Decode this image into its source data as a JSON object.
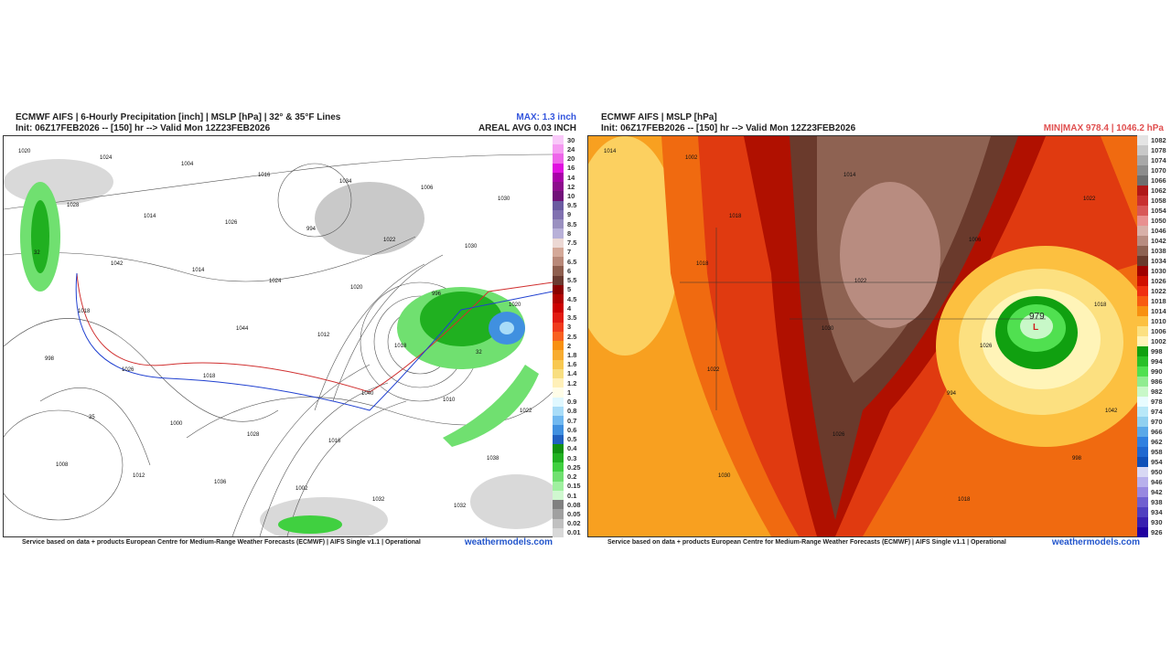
{
  "left": {
    "title_line1": "ECMWF AIFS | 6-Hourly Precipitation [inch] | MSLP [hPa] | 32° & 35°F Lines",
    "title_line2": "Init: 06Z17FEB2026 -- [150] hr --> Valid Mon 12Z23FEB2026",
    "max": "MAX: 1.3 inch",
    "areal": "AREAL AVG 0.03 INCH",
    "footer": "Service based on data + products European Centre for Medium-Range Weather Forecasts (ECMWF) | AIFS Single v1.1 | Operational",
    "watermark": "weathermodels.com",
    "map_labels": [
      "1020",
      "1014",
      "1024",
      "1018",
      "1022",
      "1012",
      "1016",
      "1022",
      "1020",
      "1026",
      "1028",
      "1032",
      "1030",
      "1042",
      "1044",
      "1040",
      "1038",
      "1024",
      "1026",
      "1020",
      "32",
      "35",
      "1036",
      "1034",
      "1030",
      "1018",
      "1018",
      "1016",
      "1032",
      "1028",
      "1014",
      "1012",
      "1010",
      "1008",
      "1004",
      "994",
      "996",
      "998",
      "1000",
      "1002",
      "1006",
      "32"
    ],
    "colorbar": {
      "labels": [
        "30",
        "24",
        "20",
        "16",
        "14",
        "12",
        "10",
        "9.5",
        "9",
        "8.5",
        "8",
        "7.5",
        "7",
        "6.5",
        "6",
        "5.5",
        "5",
        "4.5",
        "4",
        "3.5",
        "3",
        "2.5",
        "2",
        "1.8",
        "1.6",
        "1.4",
        "1.2",
        "1",
        "0.9",
        "0.8",
        "0.7",
        "0.6",
        "0.5",
        "0.4",
        "0.3",
        "0.25",
        "0.2",
        "0.15",
        "0.1",
        "0.08",
        "0.05",
        "0.02",
        "0.01"
      ],
      "colors": [
        "#f9c8f9",
        "#f59af2",
        "#ee66ea",
        "#e010e0",
        "#a800a8",
        "#8c0c8c",
        "#701078",
        "#6a5aa0",
        "#8070b0",
        "#9a90c0",
        "#b8b0d8",
        "#ecd8d4",
        "#d4a898",
        "#b88878",
        "#8e5e4e",
        "#6a3a30",
        "#8a0000",
        "#b00000",
        "#cc0000",
        "#e21a10",
        "#f03a1c",
        "#f86020",
        "#f89010",
        "#f8ac30",
        "#f8c850",
        "#f8de80",
        "#fff0b8",
        "#fffde8",
        "#e0f8ff",
        "#a8dcf8",
        "#70b8f0",
        "#4090e0",
        "#2060c0",
        "#109010",
        "#20b020",
        "#40d040",
        "#70e070",
        "#a0f0a0",
        "#d0f8d0",
        "#808080",
        "#a0a0a0",
        "#c0c0c0",
        "#d8d8d8"
      ]
    }
  },
  "right": {
    "title_line1": "ECMWF AIFS | MSLP [hPa]",
    "title_line2": "Init: 06Z17FEB2026 -- [150] hr --> Valid Mon 12Z23FEB2026",
    "minmax": "MIN|MAX 978.4 | 1046.2 hPa",
    "footer": "Service based on data + products European Centre for Medium-Range Weather Forecasts (ECMWF) | AIFS Single v1.1 | Operational",
    "watermark": "weathermodels.com",
    "low_marker": "L",
    "low_value": "979",
    "map_labels": [
      "1014",
      "1018",
      "1022",
      "1026",
      "1042",
      "1030",
      "1014",
      "1006",
      "1018",
      "1022",
      "1026",
      "1018",
      "1022",
      "1018",
      "1030",
      "994",
      "998",
      "1002"
    ],
    "colorbar": {
      "labels": [
        "1082",
        "1078",
        "1074",
        "1070",
        "1066",
        "1062",
        "1058",
        "1054",
        "1050",
        "1046",
        "1042",
        "1038",
        "1034",
        "1030",
        "1026",
        "1022",
        "1018",
        "1014",
        "1010",
        "1006",
        "1002",
        "998",
        "994",
        "990",
        "986",
        "982",
        "978",
        "974",
        "970",
        "966",
        "962",
        "958",
        "954",
        "950",
        "946",
        "942",
        "938",
        "934",
        "930",
        "926"
      ],
      "colors": [
        "#e4e4e4",
        "#c8c8c8",
        "#a8a8a8",
        "#8c8c8c",
        "#6e6e6e",
        "#b01818",
        "#c83030",
        "#d85858",
        "#e89090",
        "#d8b0a8",
        "#b88c80",
        "#8e6252",
        "#6a3a2c",
        "#a00000",
        "#d01000",
        "#f03010",
        "#f85c10",
        "#f89010",
        "#fcc040",
        "#fce080",
        "#fff4b8",
        "#10a010",
        "#28c028",
        "#50e050",
        "#90ec90",
        "#c8f8c8",
        "#e8fcff",
        "#b8e8f8",
        "#90d0f0",
        "#5aa8e8",
        "#3080e0",
        "#2068d0",
        "#1050b8",
        "#d8d8f4",
        "#b8b0ec",
        "#9888e0",
        "#7060d0",
        "#5040c0",
        "#3820b0",
        "#2000a0"
      ]
    }
  }
}
